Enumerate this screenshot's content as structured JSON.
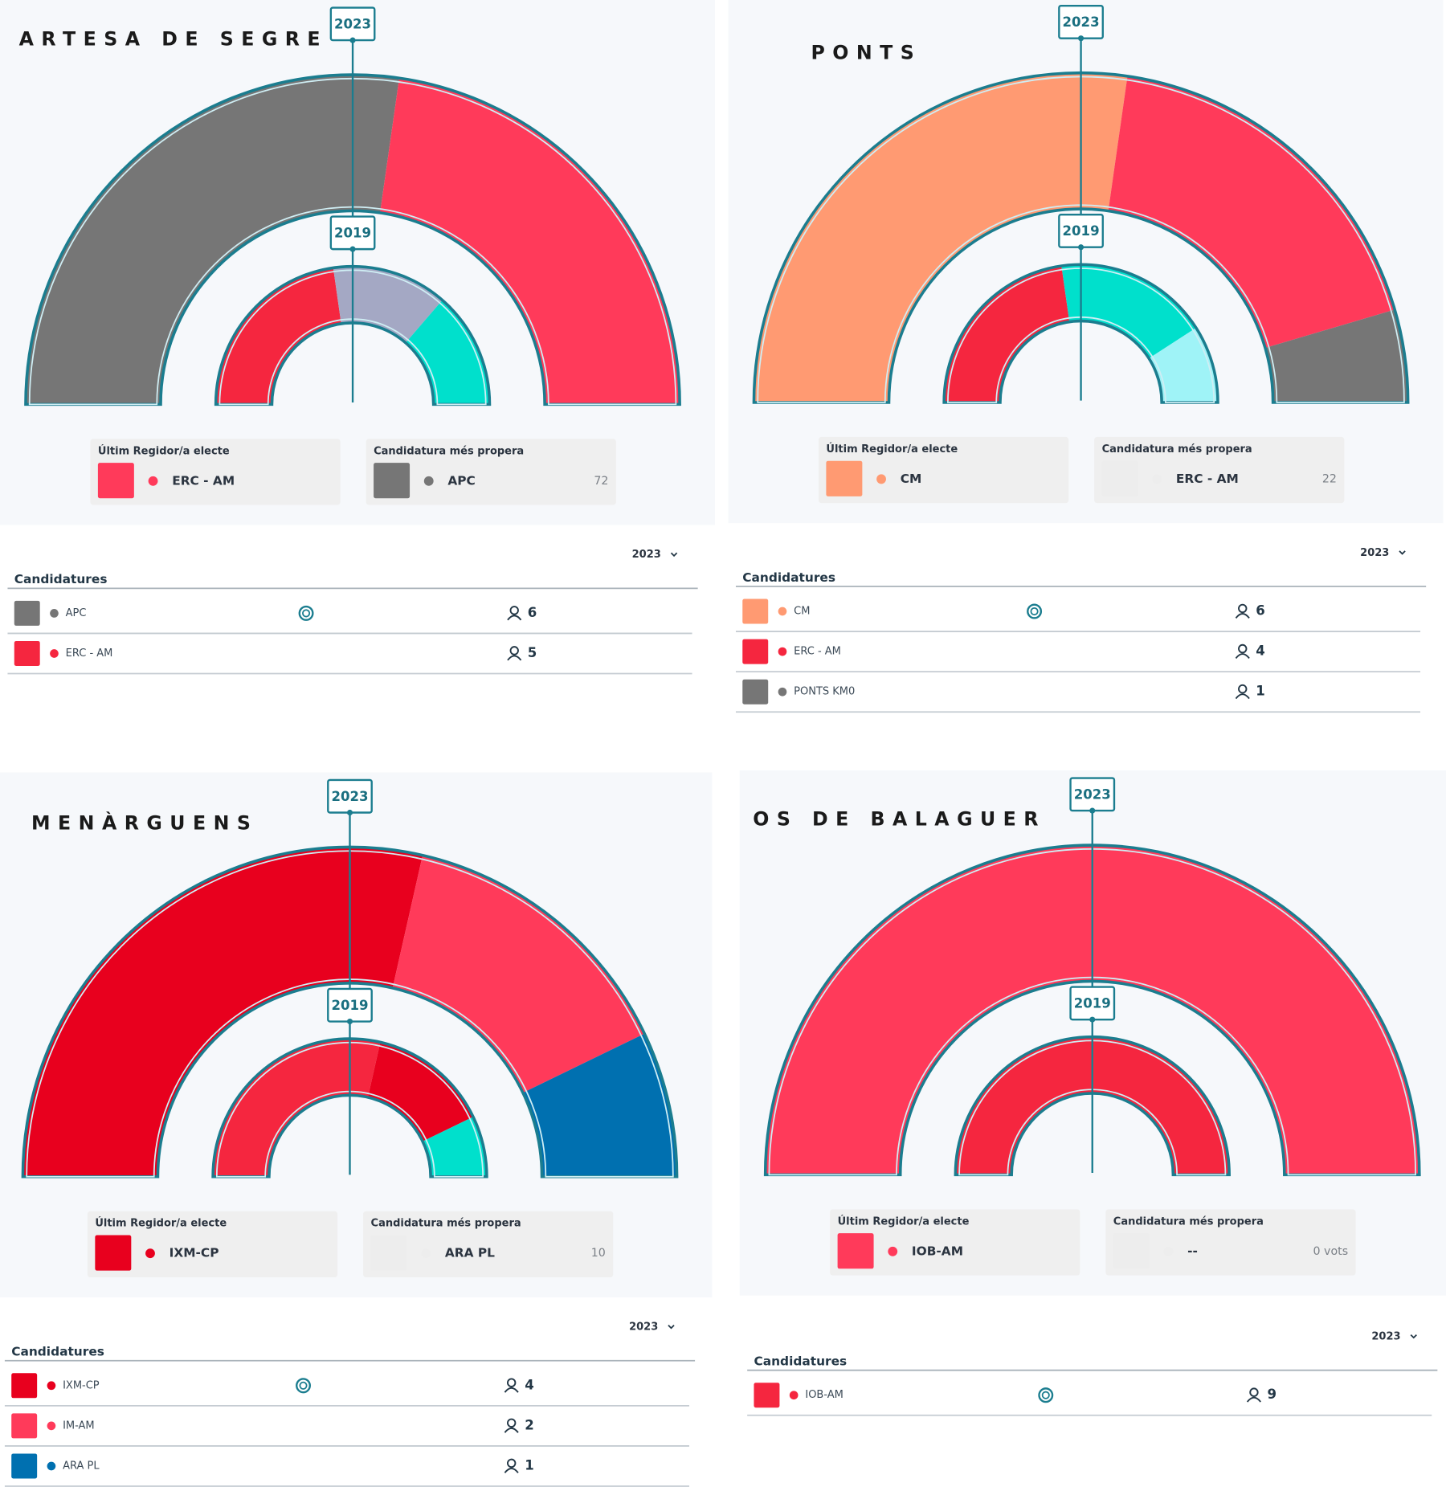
{
  "panels": [
    {
      "title": "ARTESA DE SEGRE",
      "chart_data": [
        {
          "type": "donut",
          "title": "2023",
          "values": [
            6,
            5
          ],
          "colors": [
            "#767676",
            "#ff3a5a"
          ]
        },
        {
          "type": "donut",
          "title": "2019",
          "values": [
            5,
            3,
            3
          ],
          "colors": [
            "#f5263f",
            "#a4a8c4",
            "#00e0cc"
          ]
        }
      ],
      "last_elected": {
        "heading": "Últim Regidor/a electe",
        "party": "ERC - AM",
        "color": "#ff3a5a"
      },
      "closest": {
        "heading": "Candidatura més propera",
        "party": "APC",
        "color": "#767676",
        "votes": "72"
      },
      "year_select": "2023",
      "table": {
        "heading": "Candidatures",
        "rows": [
          {
            "name": "APC",
            "color": "#767676",
            "seats": "6"
          },
          {
            "name": "ERC - AM",
            "color": "#f5263f",
            "seats": "5"
          }
        ]
      }
    },
    {
      "title": "PONTS",
      "chart_data": [
        {
          "type": "donut",
          "title": "2023",
          "values": [
            6,
            4,
            1
          ],
          "colors": [
            "#ff9a72",
            "#ff3a5a",
            "#767676"
          ]
        },
        {
          "type": "donut",
          "title": "2019",
          "values": [
            5,
            4,
            2
          ],
          "colors": [
            "#f5263f",
            "#00e0cc",
            "#9ff3f7"
          ]
        }
      ],
      "last_elected": {
        "heading": "Últim Regidor/a electe",
        "party": "CM",
        "color": "#ff9a72"
      },
      "closest": {
        "heading": "Candidatura més propera",
        "party": "ERC - AM",
        "color": "#ededed",
        "votes": "22"
      },
      "year_select": "2023",
      "table": {
        "heading": "Candidatures",
        "rows": [
          {
            "name": "CM",
            "color": "#ff9a72",
            "seats": "6"
          },
          {
            "name": "ERC - AM",
            "color": "#f5263f",
            "seats": "4"
          },
          {
            "name": "PONTS KM0",
            "color": "#767676",
            "seats": "1"
          }
        ]
      }
    },
    {
      "title": "MENÀRGUENS",
      "chart_data": [
        {
          "type": "donut",
          "title": "2023",
          "values": [
            4,
            2,
            1
          ],
          "colors": [
            "#e8001e",
            "#ff3a5a",
            "#0070b0"
          ]
        },
        {
          "type": "donut",
          "title": "2019",
          "values": [
            4,
            2,
            1
          ],
          "colors": [
            "#f5263f",
            "#e8001e",
            "#00e0cc"
          ]
        }
      ],
      "last_elected": {
        "heading": "Últim Regidor/a electe",
        "party": "IXM-CP",
        "color": "#e8001e"
      },
      "closest": {
        "heading": "Candidatura més propera",
        "party": "ARA PL",
        "color": "#ededed",
        "votes": "10"
      },
      "year_select": "2023",
      "table": {
        "heading": "Candidatures",
        "rows": [
          {
            "name": "IXM-CP",
            "color": "#e8001e",
            "seats": "4"
          },
          {
            "name": "IM-AM",
            "color": "#ff3a5a",
            "seats": "2"
          },
          {
            "name": "ARA PL",
            "color": "#0070b0",
            "seats": "1"
          }
        ]
      }
    },
    {
      "title": "OS DE BALAGUER",
      "chart_data": [
        {
          "type": "donut",
          "title": "2023",
          "values": [
            9
          ],
          "colors": [
            "#ff3a5a"
          ]
        },
        {
          "type": "donut",
          "title": "2019",
          "values": [
            9
          ],
          "colors": [
            "#f5263f"
          ]
        }
      ],
      "last_elected": {
        "heading": "Últim Regidor/a electe",
        "party": "IOB-AM",
        "color": "#ff3a5a"
      },
      "closest": {
        "heading": "Candidatura més propera",
        "party": "--",
        "color": "#ededed",
        "votes": "0 vots"
      },
      "year_select": "2023",
      "table": {
        "heading": "Candidatures",
        "rows": [
          {
            "name": "IOB-AM",
            "color": "#f5263f",
            "seats": "9"
          }
        ]
      }
    }
  ]
}
